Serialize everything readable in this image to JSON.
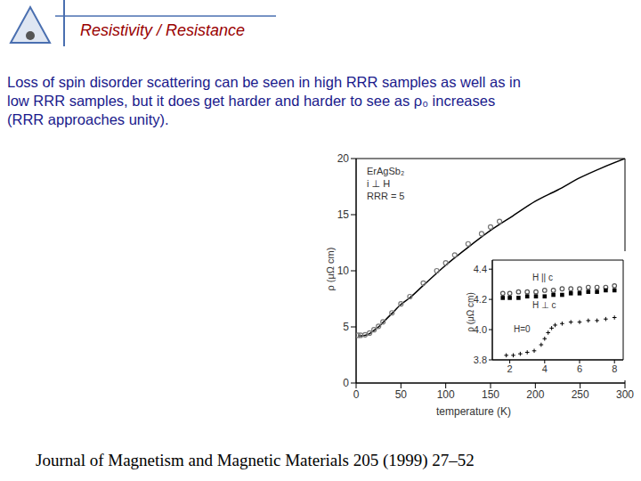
{
  "header": {
    "title": "Resistivity / Resistance"
  },
  "body": {
    "lines": [
      "Loss of spin disorder scattering can be seen in high RRR samples as well as in",
      "low RRR samples, but it does get harder and harder to see as ρ₀ increases",
      "(RRR approaches unity)."
    ]
  },
  "footer": {
    "citation": "Journal of Magnetism and Magnetic Materials 205 (1999) 27–52"
  },
  "chart_data": [
    {
      "type": "line",
      "x_label": "temperature (K)",
      "y_label": "ρ (μΩ cm)",
      "annotations": [
        "ErAgSb₂",
        "i ⊥ H",
        "RRR = 5"
      ],
      "xlim": [
        0,
        300
      ],
      "xticks": [
        0,
        50,
        100,
        150,
        200,
        250,
        300
      ],
      "ylim": [
        0,
        20
      ],
      "yticks": [
        0,
        5,
        10,
        15,
        20
      ],
      "grid": false,
      "series": [
        {
          "type": "line",
          "line_style": "solid",
          "color": "#000000",
          "x": [
            2,
            5,
            10,
            15,
            20,
            25,
            30,
            40,
            50,
            60,
            75,
            100,
            125,
            150,
            175,
            200,
            225,
            250,
            275,
            300
          ],
          "values": [
            4.2,
            4.2,
            4.25,
            4.4,
            4.7,
            5.0,
            5.4,
            6.2,
            7.0,
            7.6,
            8.7,
            10.5,
            12.1,
            13.6,
            14.9,
            16.2,
            17.2,
            18.3,
            19.2,
            20.0
          ]
        },
        {
          "type": "scatter",
          "marker": "circle",
          "color": "#777777",
          "x": [
            2,
            5,
            10,
            15,
            20,
            25,
            30,
            40,
            50,
            60,
            75,
            90,
            100,
            110,
            125,
            140,
            150,
            160
          ],
          "values": [
            4.25,
            4.25,
            4.3,
            4.45,
            4.75,
            5.05,
            5.45,
            6.25,
            7.05,
            7.7,
            8.9,
            10.0,
            10.7,
            11.4,
            12.4,
            13.3,
            13.9,
            14.4
          ]
        }
      ]
    },
    {
      "type": "scatter",
      "y_label": "ρ (μΩ cm)",
      "xlim": [
        1,
        8.5
      ],
      "xticks": [
        2,
        4,
        6,
        8
      ],
      "ylim": [
        3.8,
        4.46
      ],
      "yticks": [
        3.8,
        {
          "value": 4,
          "label": "4.0"
        },
        4.2,
        4.4
      ],
      "grid": false,
      "series": [
        {
          "name": "H || c",
          "marker": "circle",
          "color": "#555555",
          "x": [
            1.6,
            2,
            2.5,
            3,
            3.5,
            4,
            4.5,
            5,
            5.5,
            6,
            6.5,
            7,
            7.5,
            8
          ],
          "values": [
            4.24,
            4.24,
            4.25,
            4.25,
            4.25,
            4.26,
            4.26,
            4.27,
            4.27,
            4.27,
            4.28,
            4.28,
            4.28,
            4.29
          ]
        },
        {
          "name": "H ⊥ c",
          "marker": "square",
          "color": "#000000",
          "x": [
            1.6,
            2,
            2.5,
            3,
            3.5,
            4,
            4.5,
            5,
            5.5,
            6,
            6.5,
            7,
            7.5,
            8
          ],
          "values": [
            4.21,
            4.21,
            4.21,
            4.22,
            4.22,
            4.22,
            4.23,
            4.23,
            4.24,
            4.24,
            4.25,
            4.25,
            4.26,
            4.26
          ]
        },
        {
          "name": "H=0",
          "marker": "cross",
          "color": "#000000",
          "x": [
            1.8,
            2.2,
            2.6,
            3,
            3.4,
            3.8,
            4,
            4.2,
            4.4,
            4.6,
            5,
            5.5,
            6,
            6.5,
            7,
            7.5,
            8
          ],
          "values": [
            3.83,
            3.83,
            3.84,
            3.85,
            3.86,
            3.9,
            3.94,
            3.98,
            4.01,
            4.03,
            4.04,
            4.05,
            4.05,
            4.06,
            4.06,
            4.07,
            4.08
          ]
        }
      ]
    }
  ]
}
